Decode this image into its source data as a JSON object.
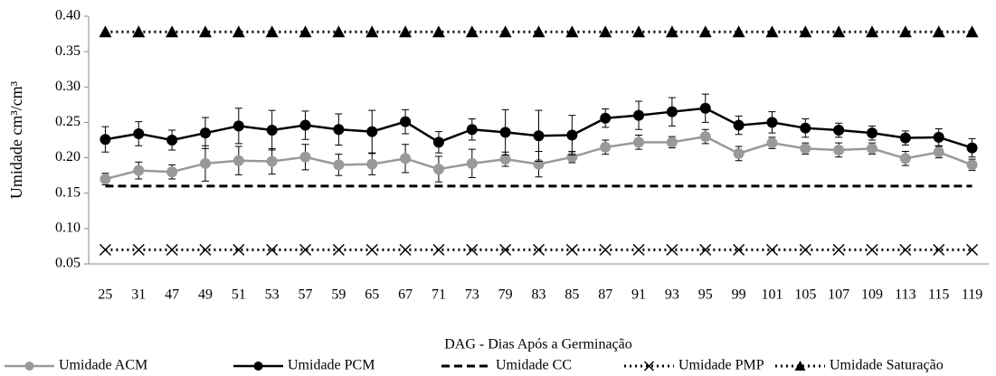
{
  "chart_data": {
    "type": "line",
    "x_label": "DAG - Dias Após a Germinação",
    "y_label": "Umidade cm³/cm³",
    "categories": [
      "25",
      "31",
      "47",
      "49",
      "51",
      "53",
      "57",
      "59",
      "65",
      "67",
      "71",
      "73",
      "79",
      "83",
      "85",
      "87",
      "91",
      "93",
      "95",
      "99",
      "101",
      "105",
      "107",
      "109",
      "113",
      "115",
      "119"
    ],
    "ylim": [
      0.05,
      0.4
    ],
    "yticks": [
      0.05,
      {
        "value": 0.1,
        "label": "0.10"
      },
      0.15,
      {
        "value": 0.2,
        "label": "0.20"
      },
      0.25,
      {
        "value": 0.3,
        "label": "0.30"
      },
      0.35,
      {
        "value": 0.4,
        "label": "0.40"
      }
    ],
    "legend": "bottom",
    "series": [
      {
        "name": "Umidade ACM",
        "color": "#999999",
        "marker": "circle",
        "line_style": "solid",
        "values": [
          0.17,
          0.182,
          0.18,
          0.192,
          0.196,
          0.195,
          0.201,
          0.19,
          0.191,
          0.199,
          0.184,
          0.192,
          0.198,
          0.191,
          0.201,
          0.215,
          0.222,
          0.222,
          0.23,
          0.206,
          0.221,
          0.213,
          0.211,
          0.213,
          0.199,
          0.208,
          0.19
        ],
        "errors": [
          0.008,
          0.012,
          0.01,
          0.025,
          0.02,
          0.018,
          0.018,
          0.015,
          0.015,
          0.02,
          0.018,
          0.02,
          0.01,
          0.018,
          0.008,
          0.01,
          0.01,
          0.008,
          0.01,
          0.01,
          0.008,
          0.008,
          0.01,
          0.008,
          0.01,
          0.008,
          0.008
        ]
      },
      {
        "name": "Umidade PCM",
        "color": "#000000",
        "marker": "circle",
        "line_style": "solid",
        "values": [
          0.226,
          0.234,
          0.225,
          0.235,
          0.245,
          0.239,
          0.246,
          0.24,
          0.237,
          0.251,
          0.222,
          0.24,
          0.236,
          0.231,
          0.232,
          0.256,
          0.26,
          0.265,
          0.27,
          0.246,
          0.25,
          0.242,
          0.239,
          0.235,
          0.228,
          0.229,
          0.214
        ],
        "errors": [
          0.018,
          0.017,
          0.014,
          0.022,
          0.025,
          0.028,
          0.02,
          0.022,
          0.03,
          0.017,
          0.015,
          0.015,
          0.032,
          0.036,
          0.028,
          0.013,
          0.02,
          0.02,
          0.02,
          0.013,
          0.015,
          0.013,
          0.01,
          0.01,
          0.01,
          0.012,
          0.013
        ]
      },
      {
        "name": "Umidade CC",
        "color": "#000000",
        "marker": "none",
        "line_style": "dashed",
        "values": [
          0.16,
          0.16,
          0.16,
          0.16,
          0.16,
          0.16,
          0.16,
          0.16,
          0.16,
          0.16,
          0.16,
          0.16,
          0.16,
          0.16,
          0.16,
          0.16,
          0.16,
          0.16,
          0.16,
          0.16,
          0.16,
          0.16,
          0.16,
          0.16,
          0.16,
          0.16,
          0.16
        ]
      },
      {
        "name": "Umidade PMP",
        "color": "#000000",
        "marker": "x",
        "line_style": "dotted",
        "values": [
          0.07,
          0.07,
          0.07,
          0.07,
          0.07,
          0.07,
          0.07,
          0.07,
          0.07,
          0.07,
          0.07,
          0.07,
          0.07,
          0.07,
          0.07,
          0.07,
          0.07,
          0.07,
          0.07,
          0.07,
          0.07,
          0.07,
          0.07,
          0.07,
          0.07,
          0.07,
          0.07
        ]
      },
      {
        "name": "Umidade Saturação",
        "color": "#000000",
        "marker": "triangle",
        "line_style": "dotted",
        "values": [
          0.378,
          0.378,
          0.378,
          0.378,
          0.378,
          0.378,
          0.378,
          0.378,
          0.378,
          0.378,
          0.378,
          0.378,
          0.378,
          0.378,
          0.378,
          0.378,
          0.378,
          0.378,
          0.378,
          0.378,
          0.378,
          0.378,
          0.378,
          0.378,
          0.378,
          0.378,
          0.378
        ]
      }
    ]
  }
}
